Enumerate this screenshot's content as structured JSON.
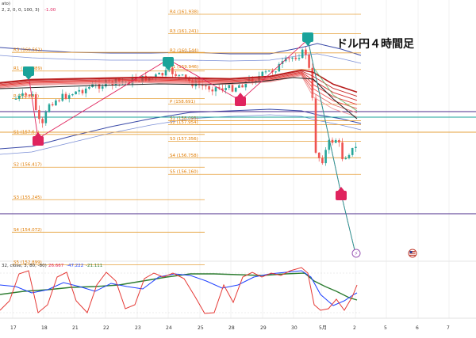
{
  "header": {
    "line1": "ato)",
    "line2": "2, 2, 0, 0, 100, 3)",
    "line2_val": "-1.00"
  },
  "title": "ドル円４時間足",
  "colors": {
    "up": "#26a69a",
    "down": "#ef5350",
    "pivot": "#e6a03c",
    "purple": "#4a2a8a",
    "teal": "#1aa39a",
    "red": "#e0245e",
    "green": "#2e7d32",
    "blue": "#1e40ff",
    "blueBand": "#3a4aa8"
  },
  "chart_data": {
    "type": "candlestick",
    "title": "ドル円４時間足",
    "x_ticks": [
      "17",
      "18",
      "21",
      "22",
      "23",
      "24",
      "25",
      "28",
      "29",
      "30",
      "5月",
      "2",
      "5",
      "6",
      "7"
    ],
    "pivot_levels": [
      {
        "label": "R4 (161.938)",
        "value": 161.938
      },
      {
        "label": "R3 (161.241)",
        "value": 161.241
      },
      {
        "label": "R2 (160.544)",
        "value": 160.544
      },
      {
        "label": "R1 (159.946)",
        "value": 159.946
      },
      {
        "label": "P (158.691)",
        "value": 158.691
      },
      {
        "label": "S1 (158.093)",
        "value": 158.093
      },
      {
        "label": "S2 (157.954)",
        "value": 157.954
      },
      {
        "label": "S3 (157.356)",
        "value": 157.356
      },
      {
        "label": "S4 (156.758)",
        "value": 156.758
      },
      {
        "label": "S5 (156.160)",
        "value": 156.16
      }
    ],
    "prev_pivot_levels": [
      {
        "label": "R3 (160.561)",
        "value": 160.561
      },
      {
        "label": "R1 (159.889)",
        "value": 159.889
      },
      {
        "label": "P (158.892)",
        "value": 158.892
      },
      {
        "label": "S1 (157.6..)",
        "value": 157.6
      },
      {
        "label": "S2 (156.417)",
        "value": 156.417
      },
      {
        "label": "S3 (155.245)",
        "value": 155.245
      },
      {
        "label": "S4 (154.072)",
        "value": 154.072
      },
      {
        "label": "S5 (152.899)",
        "value": 152.899
      }
    ],
    "oscillator": {
      "label": "32, close, 3, 80, -80)",
      "values": [
        {
          "name": "red",
          "value": "26.667"
        },
        {
          "name": "blue",
          "value": "-47.222"
        },
        {
          "name": "green",
          "value": "-21.111"
        }
      ]
    },
    "grid": true
  }
}
